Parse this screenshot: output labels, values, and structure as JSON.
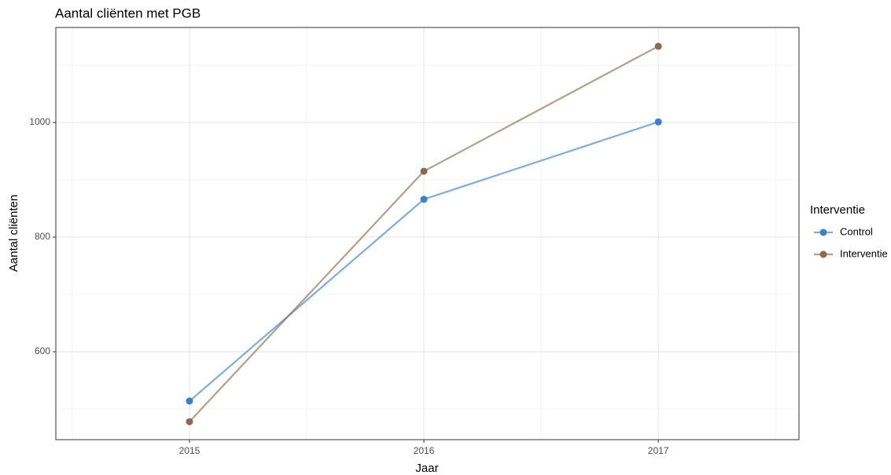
{
  "chart_data": {
    "type": "line",
    "title": "Aantal cliënten met PGB",
    "x_label": "Jaar",
    "y_label": "Aantal cliënten",
    "legend_title": "Interventie",
    "legend_position": "right",
    "x": [
      2015,
      2016,
      2017
    ],
    "series": [
      {
        "name": "Control",
        "color": "#3b7fcf",
        "values": [
          514,
          866,
          1001
        ]
      },
      {
        "name": "Interventie",
        "color": "#8b6a52",
        "values": [
          478,
          915,
          1133
        ]
      }
    ],
    "xlim": [
      2014.43,
      2017.6
    ],
    "xticks": [
      2015,
      2016,
      2017
    ],
    "ylim": [
      446.6,
      1165.8
    ],
    "yticks": [
      600,
      800,
      1000
    ],
    "grid": true
  }
}
